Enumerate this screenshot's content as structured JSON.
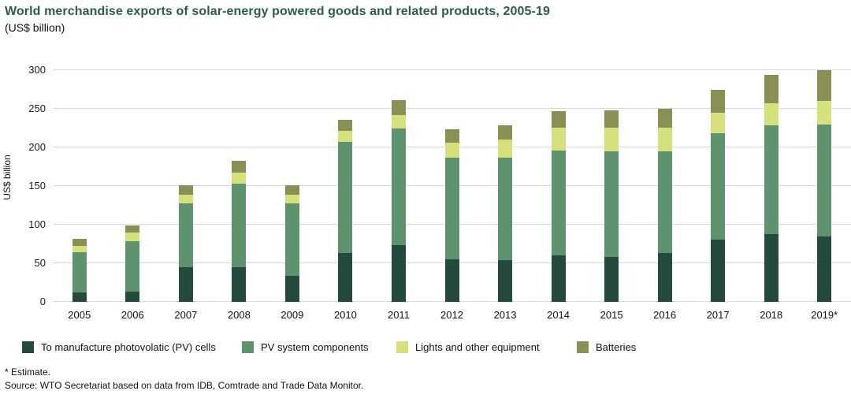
{
  "header": {
    "title": "World merchandise exports of solar-energy powered goods and related products, 2005-19",
    "subtitle": "(US$ billion)"
  },
  "chart_data": {
    "type": "bar",
    "stacked": true,
    "title": "World merchandise exports of solar-energy powered goods and related products, 2005-19",
    "subtitle": "(US$ billion)",
    "xlabel": "",
    "ylabel": "US$ billion",
    "ylim": [
      0,
      300
    ],
    "yticks": [
      0,
      50,
      100,
      150,
      200,
      250,
      300
    ],
    "grid": true,
    "legend_position": "bottom",
    "categories": [
      "2005",
      "2006",
      "2007",
      "2008",
      "2009",
      "2010",
      "2011",
      "2012",
      "2013",
      "2014",
      "2015",
      "2016",
      "2017",
      "2018",
      "2019*"
    ],
    "series": [
      {
        "name": "To manufacture photovolatic (PV) cells",
        "color": "#24493d",
        "values": [
          12,
          13,
          45,
          45,
          34,
          63,
          73,
          55,
          54,
          60,
          58,
          63,
          81,
          88,
          85
        ]
      },
      {
        "name": "PV system components",
        "color": "#5f9370",
        "values": [
          52,
          66,
          83,
          108,
          94,
          144,
          152,
          132,
          133,
          136,
          137,
          132,
          137,
          141,
          145
        ]
      },
      {
        "name": "Lights and other equipment",
        "color": "#d6e07c",
        "values": [
          8,
          11,
          11,
          14,
          11,
          14,
          17,
          19,
          23,
          30,
          31,
          31,
          27,
          28,
          30
        ]
      },
      {
        "name": "Batteries",
        "color": "#8a9055",
        "values": [
          10,
          9,
          12,
          16,
          12,
          15,
          19,
          18,
          19,
          21,
          22,
          24,
          30,
          37,
          40
        ]
      }
    ],
    "totals": [
      82,
      99,
      151,
      183,
      151,
      236,
      261,
      224,
      229,
      247,
      248,
      250,
      275,
      294,
      300
    ]
  },
  "footnotes": {
    "estimate": "* Estimate.",
    "source": "Source: WTO Secretariat based on data from IDB, Comtrade and Trade Data Monitor."
  }
}
